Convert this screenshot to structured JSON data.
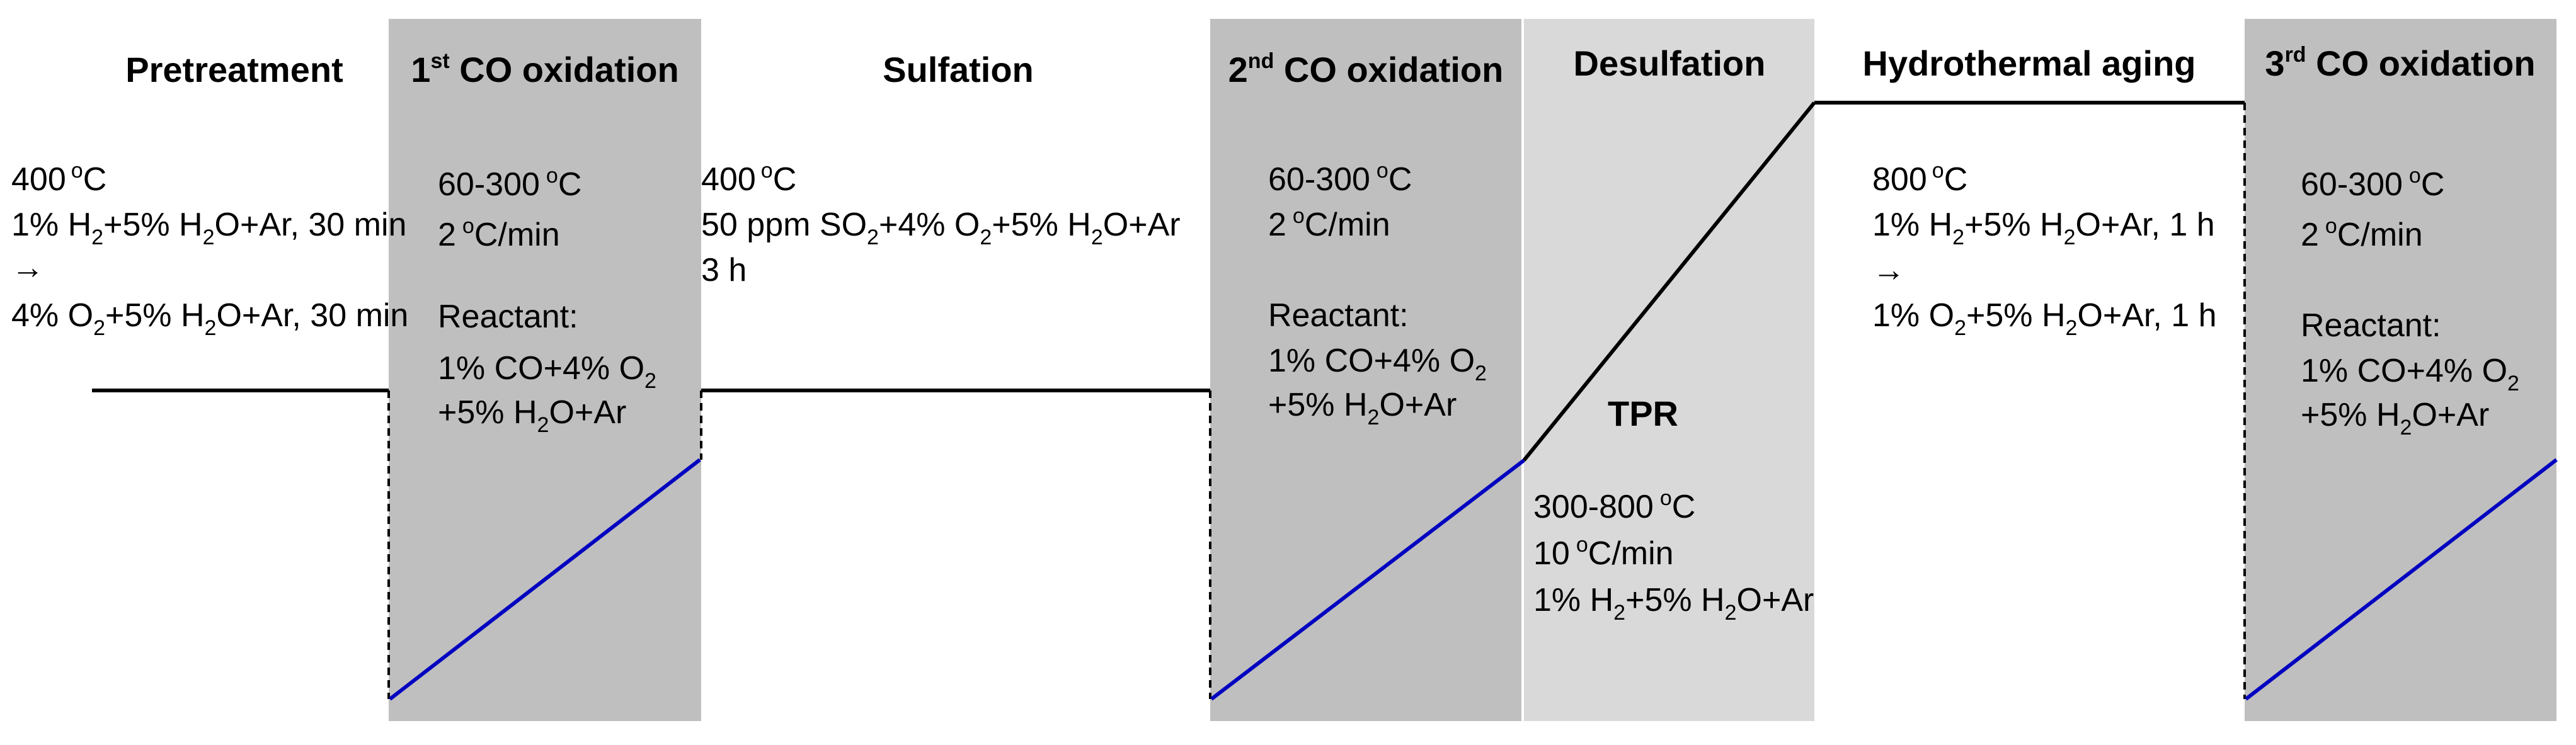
{
  "colors": {
    "co_oxidation_band": "#bfbfbf",
    "desulfation_band": "#d9d9d9",
    "temperature_line": "#000000",
    "ramp_line": "#0000c0"
  },
  "stages": {
    "pretreatment": {
      "title": "Pretreatment",
      "temp": "400",
      "deg": "o",
      "unit": "C",
      "step1": {
        "a": "1% H",
        "a_sub": "2",
        "b": "+5% H",
        "b_sub": "2",
        "c": "O+Ar, 30 min"
      },
      "arrow": "→",
      "step2": {
        "a": "4% O",
        "a_sub": "2",
        "b": "+5% H",
        "b_sub": "2",
        "c": "O+Ar, 30 min"
      }
    },
    "co_ox_1": {
      "pre": "1",
      "sup": "st",
      "post": " CO oxidation",
      "range": "60-300",
      "range_deg": "o",
      "range_unit": "C",
      "rate": "2",
      "rate_deg": "o",
      "rate_unit": "C/min",
      "reactant_label": "Reactant:",
      "feed1": {
        "a": "1% CO+4% O",
        "a_sub": "2"
      },
      "feed2": {
        "a": "+5% H",
        "a_sub": "2",
        "b": "O+Ar"
      }
    },
    "sulfation": {
      "title": "Sulfation",
      "temp": "400",
      "deg": "o",
      "unit": "C",
      "feed": {
        "a": "50 ppm SO",
        "a_sub": "2",
        "b": "+4% O",
        "b_sub": "2",
        "c": "+5% H",
        "c_sub": "2",
        "d": "O+Ar"
      },
      "time": "3 h"
    },
    "co_ox_2": {
      "pre": "2",
      "sup": "nd",
      "post": " CO oxidation",
      "range": "60-300",
      "range_deg": "o",
      "range_unit": "C",
      "rate": "2",
      "rate_deg": "o",
      "rate_unit": "C/min",
      "reactant_label": "Reactant:",
      "feed1": {
        "a": "1% CO+4% O",
        "a_sub": "2"
      },
      "feed2": {
        "a": "+5% H",
        "a_sub": "2",
        "b": "O+Ar"
      }
    },
    "desulfation": {
      "title": "Desulfation",
      "method": "TPR",
      "range": "300-800",
      "range_deg": "o",
      "range_unit": "C",
      "rate": "10",
      "rate_deg": "o",
      "rate_unit": "C/min",
      "feed": {
        "a": "1% H",
        "a_sub": "2",
        "b": "+5% H",
        "b_sub": "2",
        "c": "O+Ar"
      }
    },
    "hydrothermal": {
      "title": "Hydrothermal aging",
      "temp": "800",
      "deg": "o",
      "unit": "C",
      "step1": {
        "a": "1% H",
        "a_sub": "2",
        "b": "+5% H",
        "b_sub": "2",
        "c": "O+Ar, 1 h"
      },
      "arrow": "→",
      "step2": {
        "a": "1% O",
        "a_sub": "2",
        "b": "+5% H",
        "b_sub": "2",
        "c": "O+Ar, 1 h"
      }
    },
    "co_ox_3": {
      "pre": "3",
      "sup": "rd",
      "post": " CO oxidation",
      "range": "60-300",
      "range_deg": "o",
      "range_unit": "C",
      "rate": "2",
      "rate_deg": "o",
      "rate_unit": "C/min",
      "reactant_label": "Reactant:",
      "feed1": {
        "a": "1% CO+4% O",
        "a_sub": "2"
      },
      "feed2": {
        "a": "+5% H",
        "a_sub": "2",
        "b": "O+Ar"
      }
    }
  }
}
